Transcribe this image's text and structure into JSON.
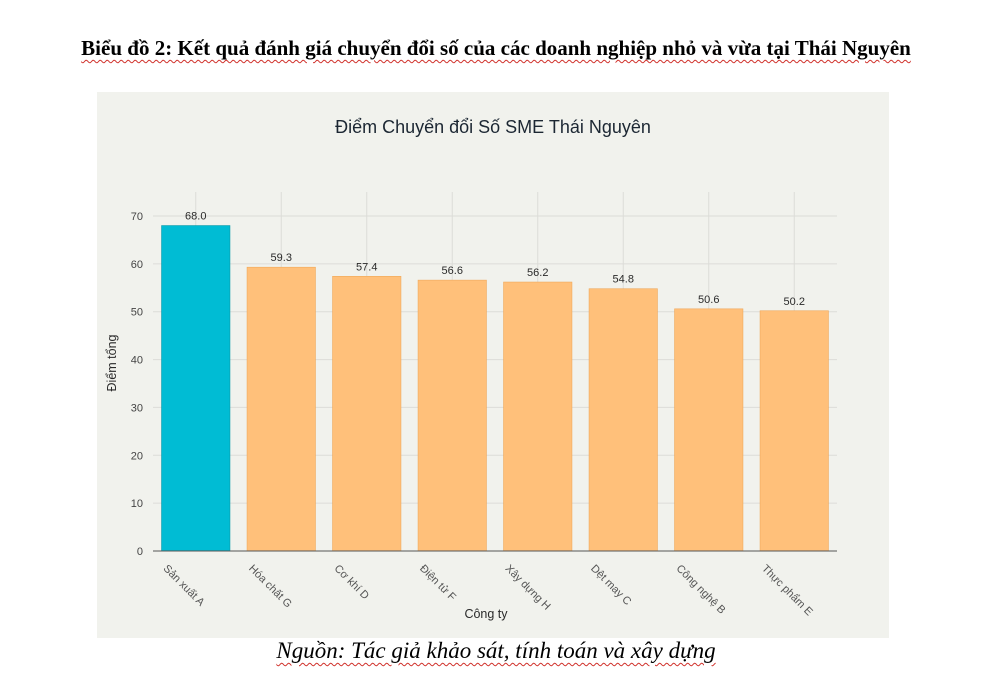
{
  "document": {
    "heading": "Biểu đồ 2: Kết quả đánh giá chuyển đổi số của các doanh nghiệp nhỏ và vừa tại Thái Nguyên",
    "source_note": "Nguồn: Tác giả khảo sát, tính toán và xây dựng"
  },
  "chart_data": {
    "type": "bar",
    "title": "Điểm Chuyển đổi Số SME Thái Nguyên",
    "xlabel": "Công ty",
    "ylabel": "Điểm tổng",
    "categories": [
      "Sản xuất A",
      "Hóa chất G",
      "Cơ khí D",
      "Điện tử F",
      "Xây dựng H",
      "Dệt may C",
      "Công nghệ B",
      "Thực phẩm E"
    ],
    "values": [
      68.0,
      59.3,
      57.4,
      56.6,
      56.2,
      54.8,
      50.6,
      50.2
    ],
    "value_labels": [
      "68.0",
      "59.3",
      "57.4",
      "56.6",
      "56.2",
      "54.8",
      "50.6",
      "50.2"
    ],
    "bar_colors": [
      "#00bcd4",
      "#ffc07a",
      "#ffc07a",
      "#ffc07a",
      "#ffc07a",
      "#ffc07a",
      "#ffc07a",
      "#ffc07a"
    ],
    "y_ticks": [
      0,
      10,
      20,
      30,
      40,
      50,
      60,
      70
    ],
    "ylim": [
      0,
      70
    ],
    "grid": true,
    "legend": "none"
  }
}
